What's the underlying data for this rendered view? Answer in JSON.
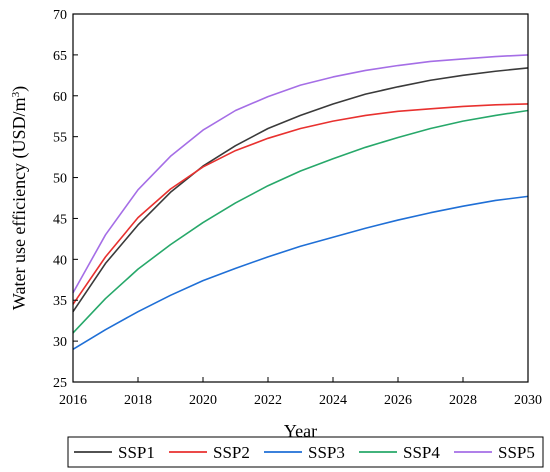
{
  "chart_data": {
    "type": "line",
    "xlabel": "Year",
    "ylabel_main": "Water use efficiency (USD/m",
    "ylabel_sup": "3",
    "ylabel_close": ")",
    "xlim": [
      2016,
      2030
    ],
    "ylim": [
      25,
      70
    ],
    "xticks": [
      2016,
      2018,
      2020,
      2022,
      2024,
      2026,
      2028,
      2030
    ],
    "yticks": [
      25,
      30,
      35,
      40,
      45,
      50,
      55,
      60,
      65,
      70
    ],
    "grid": false,
    "legend_position": "bottom",
    "x": [
      2016,
      2017,
      2018,
      2019,
      2020,
      2021,
      2022,
      2023,
      2024,
      2025,
      2026,
      2027,
      2028,
      2029,
      2030
    ],
    "series": [
      {
        "name": "SSP1",
        "color": "#3a3a3a",
        "values": [
          33.6,
          39.5,
          44.2,
          48.2,
          51.4,
          53.9,
          56.0,
          57.6,
          59.0,
          60.2,
          61.1,
          61.9,
          62.5,
          63.0,
          63.4
        ]
      },
      {
        "name": "SSP2",
        "color": "#e8312f",
        "values": [
          34.5,
          40.3,
          45.1,
          48.6,
          51.3,
          53.3,
          54.8,
          56.0,
          56.9,
          57.6,
          58.1,
          58.4,
          58.7,
          58.9,
          59.0
        ]
      },
      {
        "name": "SSP3",
        "color": "#1f6fd6",
        "values": [
          29.0,
          31.4,
          33.6,
          35.6,
          37.4,
          38.9,
          40.3,
          41.6,
          42.7,
          43.8,
          44.8,
          45.7,
          46.5,
          47.2,
          47.7
        ]
      },
      {
        "name": "SSP4",
        "color": "#27a86a",
        "values": [
          31.0,
          35.2,
          38.8,
          41.8,
          44.5,
          46.9,
          49.0,
          50.8,
          52.3,
          53.7,
          54.9,
          56.0,
          56.9,
          57.6,
          58.2
        ]
      },
      {
        "name": "SSP5",
        "color": "#a56ee6",
        "values": [
          35.9,
          43.0,
          48.5,
          52.6,
          55.8,
          58.2,
          59.9,
          61.3,
          62.3,
          63.1,
          63.7,
          64.2,
          64.5,
          64.8,
          65.0
        ]
      }
    ]
  }
}
